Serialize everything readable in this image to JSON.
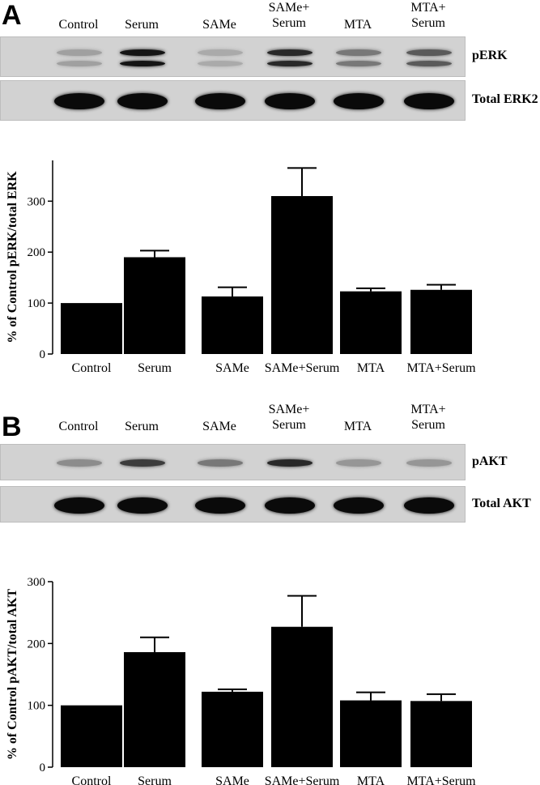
{
  "panels": [
    {
      "letter": "A",
      "lane_headers": [
        {
          "lines": [
            "Control"
          ]
        },
        {
          "lines": [
            "Serum"
          ]
        },
        {
          "lines": [
            "SAMe"
          ]
        },
        {
          "lines": [
            "SAMe+",
            "Serum"
          ]
        },
        {
          "lines": [
            "MTA"
          ]
        },
        {
          "lines": [
            "MTA+",
            "Serum"
          ]
        }
      ],
      "blots": [
        {
          "label": "pERK",
          "lane_intensity": [
            0.25,
            0.95,
            0.2,
            0.85,
            0.45,
            0.6
          ],
          "double_band": true
        },
        {
          "label": "Total ERK2",
          "lane_intensity": [
            1.0,
            1.0,
            1.0,
            1.0,
            1.0,
            1.0
          ],
          "double_band": false
        }
      ],
      "chart_data": {
        "type": "bar",
        "categories": [
          "Control",
          "Serum",
          "SAMe",
          "SAMe+Serum",
          "MTA",
          "MTA+Serum"
        ],
        "values": [
          100,
          190,
          113,
          310,
          123,
          126
        ],
        "errors": [
          0,
          13,
          18,
          55,
          6,
          10
        ],
        "ylabel": "% of Control pERK/total ERK",
        "ylim": [
          0,
          380
        ],
        "yticks": [
          0,
          100,
          200,
          300
        ],
        "grid": false
      }
    },
    {
      "letter": "B",
      "lane_headers": [
        {
          "lines": [
            "Control"
          ]
        },
        {
          "lines": [
            "Serum"
          ]
        },
        {
          "lines": [
            "SAMe"
          ]
        },
        {
          "lines": [
            "SAMe+",
            "Serum"
          ]
        },
        {
          "lines": [
            "MTA"
          ]
        },
        {
          "lines": [
            "MTA+",
            "Serum"
          ]
        }
      ],
      "blots": [
        {
          "label": "pAKT",
          "lane_intensity": [
            0.35,
            0.75,
            0.45,
            0.85,
            0.3,
            0.3
          ],
          "double_band": false
        },
        {
          "label": "Total AKT",
          "lane_intensity": [
            1.0,
            1.0,
            1.0,
            1.0,
            1.0,
            1.0
          ],
          "double_band": false
        }
      ],
      "chart_data": {
        "type": "bar",
        "categories": [
          "Control",
          "Serum",
          "SAMe",
          "SAMe+Serum",
          "MTA",
          "MTA+Serum"
        ],
        "values": [
          100,
          186,
          122,
          227,
          108,
          107
        ],
        "errors": [
          0,
          24,
          4,
          50,
          13,
          11
        ],
        "ylabel": "% of Control pAKT/total AKT",
        "ylim": [
          0,
          300
        ],
        "yticks": [
          0,
          100,
          200,
          300
        ],
        "grid": false
      }
    }
  ]
}
